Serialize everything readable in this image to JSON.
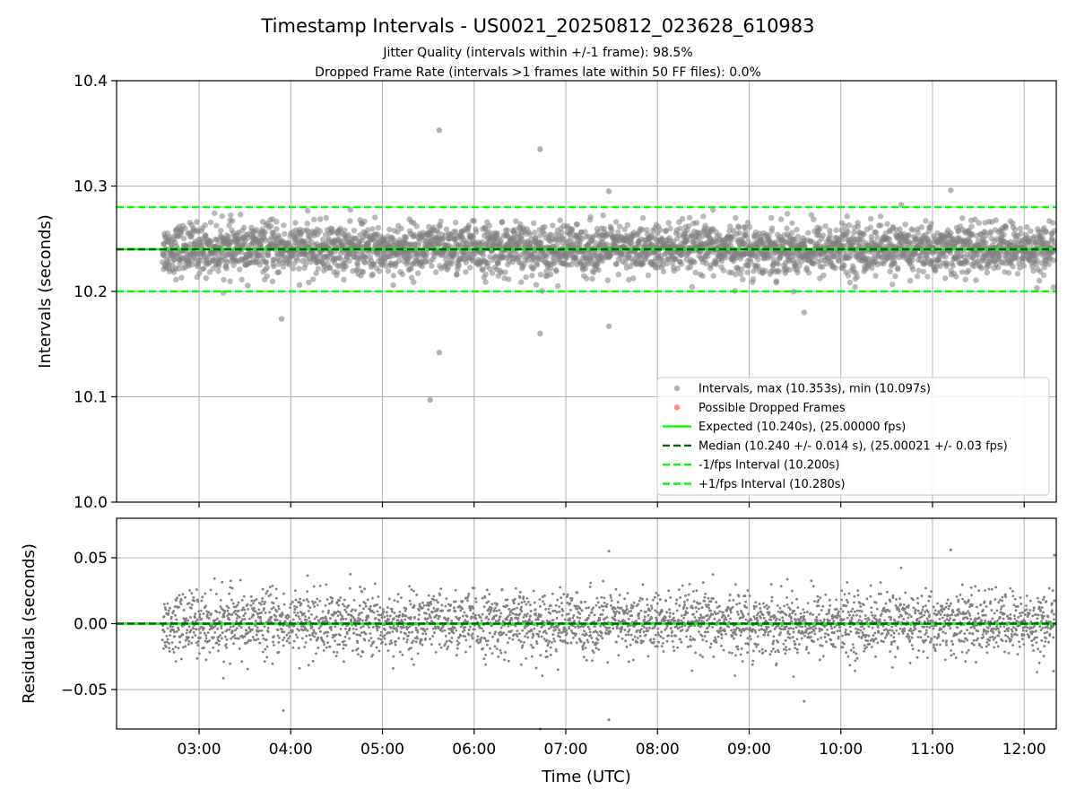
{
  "chart_data": [
    {
      "type": "scatter",
      "panel": "top",
      "title": "Timestamp Intervals - US0021_20250812_023628_610983",
      "subtitle_lines": [
        "Jitter Quality (intervals within +/-1 frame): 98.5%",
        "Dropped Frame Rate (intervals >1 frames late within 50 FF files): 0.0%"
      ],
      "ylabel": "Intervals (seconds)",
      "xlabel": "",
      "x_axis_type": "time (UTC, hours)",
      "xlim": [
        2.1,
        12.35
      ],
      "ylim": [
        10.0,
        10.4
      ],
      "yticks": [
        10.0,
        10.1,
        10.2,
        10.3,
        10.4
      ],
      "ytick_labels": [
        "10.0",
        "10.1",
        "10.2",
        "10.3",
        "10.4"
      ],
      "grid": true,
      "legend_placement": "lower-right",
      "point_count_approx": 3400,
      "x_range_data": [
        "02:36",
        "12:20"
      ],
      "spread_std": 0.014,
      "series": [
        {
          "name": "Intervals, max (10.353s), min (10.097s)",
          "kind": "points",
          "color": "#808080",
          "median": 10.24
        },
        {
          "name": "Possible Dropped Frames",
          "kind": "points",
          "color": "#ff4040",
          "values": []
        },
        {
          "name": "Expected (10.240s), (25.00000 fps)",
          "kind": "hline",
          "y": 10.24,
          "color": "#00ff00",
          "style": "solid"
        },
        {
          "name": "Median (10.240 +/- 0.014 s), (25.00021 +/- 0.03 fps)",
          "kind": "hline",
          "y": 10.24,
          "color": "#006400",
          "style": "dashed"
        },
        {
          "name": "-1/fps Interval (10.200s)",
          "kind": "hline",
          "y": 10.2,
          "color": "#00ff00",
          "style": "dashed"
        },
        {
          "name": "+1/fps Interval (10.280s)",
          "kind": "hline",
          "y": 10.28,
          "color": "#00ff00",
          "style": "dashed"
        }
      ],
      "outliers": [
        {
          "x": 5.62,
          "y": 10.353
        },
        {
          "x": 6.72,
          "y": 10.335
        },
        {
          "x": 5.62,
          "y": 10.142
        },
        {
          "x": 5.52,
          "y": 10.097
        },
        {
          "x": 6.72,
          "y": 10.16
        },
        {
          "x": 7.47,
          "y": 10.167
        },
        {
          "x": 3.9,
          "y": 10.174
        },
        {
          "x": 9.6,
          "y": 10.18
        },
        {
          "x": 7.47,
          "y": 10.295
        },
        {
          "x": 11.2,
          "y": 10.296
        }
      ]
    },
    {
      "type": "scatter",
      "panel": "bottom",
      "ylabel": "Residuals (seconds)",
      "xlabel": "Time (UTC)",
      "xlim": [
        2.1,
        12.35
      ],
      "ylim": [
        -0.08,
        0.08
      ],
      "yticks": [
        -0.05,
        0.0,
        0.05
      ],
      "ytick_labels": [
        "−0.05",
        "0.00",
        "0.05"
      ],
      "xticks": [
        3,
        4,
        5,
        6,
        7,
        8,
        9,
        10,
        11,
        12
      ],
      "xtick_labels": [
        "03:00",
        "04:00",
        "05:00",
        "06:00",
        "07:00",
        "08:00",
        "09:00",
        "10:00",
        "11:00",
        "12:00"
      ],
      "grid": true,
      "series": [
        {
          "name": "Residuals",
          "kind": "points",
          "color": "#808080",
          "spread_std": 0.014
        },
        {
          "name": "Zero",
          "kind": "hline",
          "y": 0.0,
          "color": "#00ff00",
          "style": "solid"
        },
        {
          "name": "Median residual",
          "kind": "hline",
          "y": 0.0,
          "color": "#006400",
          "style": "dashed"
        }
      ],
      "outliers": [
        {
          "x": 3.92,
          "y": -0.066
        },
        {
          "x": 6.72,
          "y": -0.08
        },
        {
          "x": 7.47,
          "y": -0.073
        },
        {
          "x": 7.47,
          "y": 0.055
        },
        {
          "x": 11.2,
          "y": 0.056
        },
        {
          "x": 12.33,
          "y": 0.052
        },
        {
          "x": 9.6,
          "y": -0.059
        }
      ]
    }
  ]
}
